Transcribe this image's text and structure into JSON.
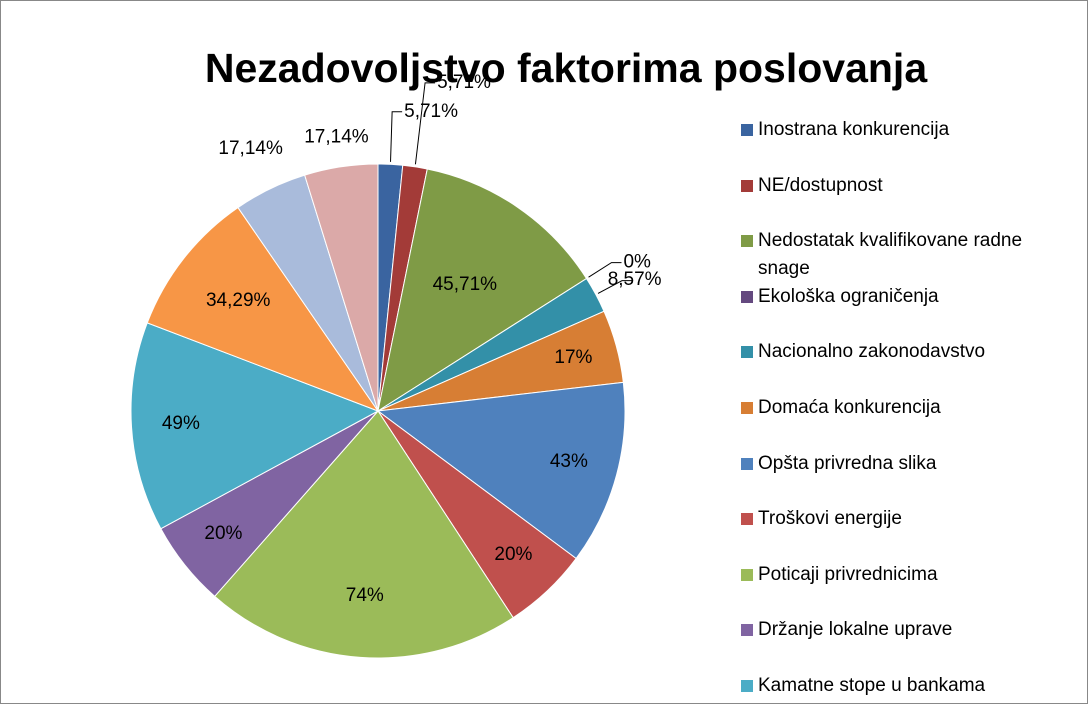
{
  "chart_data": {
    "type": "pie",
    "title": "Nezadovoljstvo faktorima poslovanja",
    "categories": [
      "Inostrana konkurencija",
      "NE/dostupnost",
      "Nedostatak kvalifikovane radne snage",
      "Ekološka ograničenja",
      "Nacionalno zakonodavstvo",
      "Domaća konkurencija",
      "Opšta privredna slika",
      "Troškovi energije",
      "Poticaji privrednicima",
      "Držanje lokalne uprave",
      "Kamatne stope u bankama",
      null,
      null,
      null
    ],
    "values": [
      5.71,
      5.71,
      45.71,
      0,
      8.57,
      17,
      43,
      20,
      74,
      20,
      49,
      34.29,
      17.14,
      17.14
    ],
    "value_labels": [
      "5,71%",
      "5,71%",
      "45,71%",
      "0%",
      "8,57%",
      "17%",
      "43%",
      "20%",
      "74%",
      "20%",
      "49%",
      "34,29%",
      "17,14%",
      "17,14%"
    ],
    "colors": [
      "#3a64a0",
      "#a33b38",
      "#7f9b46",
      "#64497f",
      "#3390a8",
      "#d77e34",
      "#4f81bd",
      "#c0504d",
      "#9bbb59",
      "#8064a2",
      "#4bacc6",
      "#f79646",
      "#a9bbdb",
      "#dba9a8"
    ]
  }
}
